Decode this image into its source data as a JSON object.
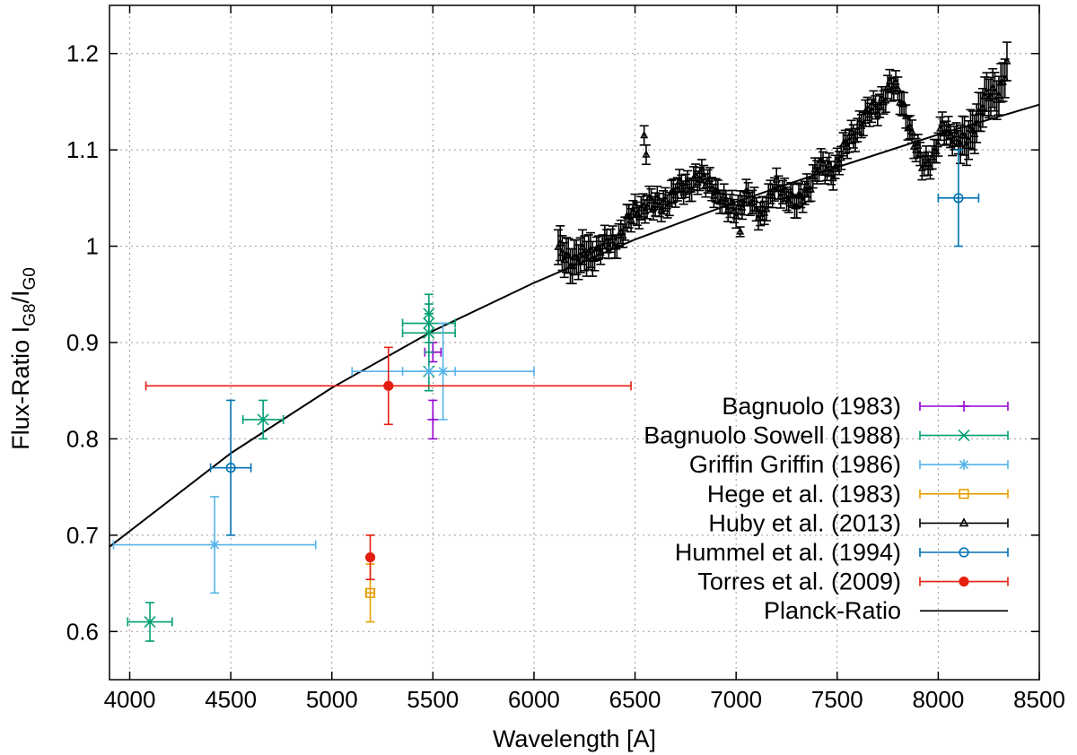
{
  "chart_data": {
    "type": "scatter",
    "xlabel": "Wavelength [A]",
    "ylabel": {
      "prefix": "Flux-Ratio I",
      "sub1": "G8",
      "mid": "/I",
      "sub2": "G0"
    },
    "xlim": [
      3900,
      8500
    ],
    "ylim": [
      0.55,
      1.25
    ],
    "xticks": [
      "4000",
      "4500",
      "5000",
      "5500",
      "6000",
      "6500",
      "7000",
      "7500",
      "8000",
      "8500"
    ],
    "yticks": [
      "0.6",
      "0.7",
      "0.8",
      "0.9",
      "1",
      "1.1",
      "1.2"
    ],
    "grid": true,
    "legend_position": "bottom-right",
    "series": [
      {
        "name": "Bagnuolo (1983)",
        "color": "#9400d3",
        "marker": "plus",
        "points": [
          {
            "x": 5500,
            "y": 0.82,
            "xerr": 0,
            "yerr": 0.02
          },
          {
            "x": 5500,
            "y": 0.89,
            "xerr": 40,
            "yerr": 0.01
          }
        ]
      },
      {
        "name": "Bagnuolo  Sowell (1988)",
        "color": "#009e73",
        "marker": "cross",
        "points": [
          {
            "x": 4100,
            "y": 0.61,
            "xerr": 110,
            "yerr": 0.02
          },
          {
            "x": 4660,
            "y": 0.82,
            "xerr": 100,
            "yerr": 0.02
          },
          {
            "x": 5480,
            "y": 0.87,
            "xerr": 0,
            "yerr": 0.02
          },
          {
            "x": 5480,
            "y": 0.91,
            "xerr": 130,
            "yerr": 0.02
          },
          {
            "x": 5480,
            "y": 0.92,
            "xerr": 130,
            "yerr": 0.02
          },
          {
            "x": 5480,
            "y": 0.93,
            "xerr": 0,
            "yerr": 0.02
          }
        ]
      },
      {
        "name": "Griffin  Griffin (1986)",
        "color": "#56b4e9",
        "marker": "star",
        "points": [
          {
            "x": 4420,
            "y": 0.69,
            "xerr": 500,
            "yerr": 0.05
          },
          {
            "x": 5550,
            "y": 0.87,
            "xerr": 450,
            "yerr": 0.05
          },
          {
            "x": 5480,
            "y": 0.87,
            "xerr": 130,
            "yerr": 0
          }
        ]
      },
      {
        "name": "Hege et al. (1983)",
        "color": "#e69f00",
        "marker": "square",
        "points": [
          {
            "x": 5190,
            "y": 0.64,
            "xerr": 20,
            "yerr": 0.03
          }
        ]
      },
      {
        "name": "Huby et al. (2013)",
        "color": "#000000",
        "marker": "triangle",
        "spectrum_range": [
          6120,
          8340
        ],
        "outliers": [
          {
            "x": 6545,
            "y": 1.115,
            "yerr": 0.01
          },
          {
            "x": 6555,
            "y": 1.095,
            "yerr": 0.01
          },
          {
            "x": 7020,
            "y": 1.015,
            "yerr": 0.005
          }
        ]
      },
      {
        "name": "Hummel et al. (1994)",
        "color": "#0072b2",
        "marker": "circle",
        "points": [
          {
            "x": 4500,
            "y": 0.77,
            "xerr": 100,
            "yerr": 0.07
          },
          {
            "x": 8100,
            "y": 1.05,
            "xerr": 100,
            "yerr": 0.05
          }
        ]
      },
      {
        "name": "Torres et al. (2009)",
        "color": "#e51e10",
        "marker": "filled-circle",
        "points": [
          {
            "x": 5280,
            "y": 0.855,
            "xerr": 1200,
            "yerr": 0.04
          },
          {
            "x": 5190,
            "y": 0.677,
            "xerr": 0,
            "yerr": 0.023
          }
        ]
      },
      {
        "name": "Planck-Ratio",
        "color": "#000000",
        "marker": "line",
        "curve": [
          {
            "x": 3900,
            "y": 0.688
          },
          {
            "x": 4500,
            "y": 0.785
          },
          {
            "x": 5000,
            "y": 0.853
          },
          {
            "x": 5500,
            "y": 0.912
          },
          {
            "x": 6000,
            "y": 0.962
          },
          {
            "x": 6500,
            "y": 1.007
          },
          {
            "x": 7000,
            "y": 1.046
          },
          {
            "x": 7500,
            "y": 1.082
          },
          {
            "x": 8000,
            "y": 1.116
          },
          {
            "x": 8500,
            "y": 1.147
          }
        ]
      }
    ]
  }
}
